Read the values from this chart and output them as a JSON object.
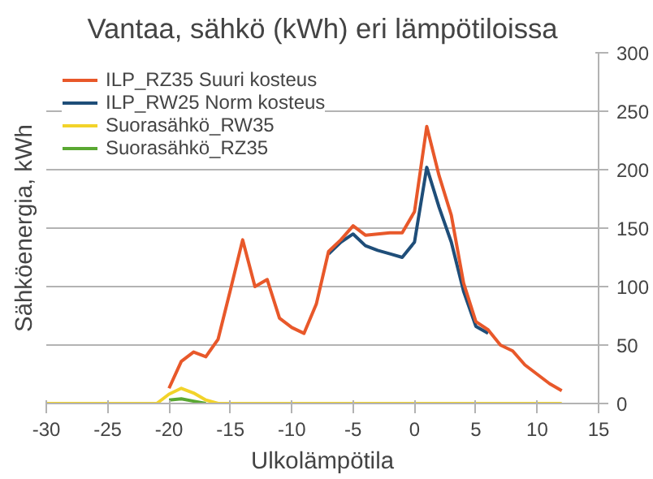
{
  "chart_data": {
    "type": "line",
    "title": "Vantaa, sähkö (kWh) eri lämpötiloissa",
    "xlabel": "Ulkolämpötila",
    "ylabel": "Sähköenergia, kWh",
    "x": [
      -30,
      -29,
      -28,
      -27,
      -26,
      -25,
      -24,
      -23,
      -22,
      -21,
      -20,
      -19,
      -18,
      -17,
      -16,
      -15,
      -14,
      -13,
      -12,
      -11,
      -10,
      -9,
      -8,
      -7,
      -6,
      -5,
      -4,
      -3,
      -2,
      -1,
      0,
      1,
      2,
      3,
      4,
      5,
      6,
      7,
      8,
      9,
      10,
      11,
      12
    ],
    "series": [
      {
        "name": "ILP_RZ35 Suuri kosteus",
        "color": "#e8582a",
        "values": [
          null,
          null,
          null,
          null,
          null,
          null,
          null,
          null,
          null,
          null,
          13,
          36,
          44,
          40,
          55,
          97,
          140,
          100,
          106,
          73,
          65,
          60,
          85,
          130,
          140,
          152,
          144,
          145,
          146,
          146,
          164,
          237,
          195,
          161,
          103,
          70,
          63,
          50,
          45,
          33,
          25,
          17,
          11
        ]
      },
      {
        "name": "ILP_RW25 Norm kosteus",
        "color": "#1f4e79",
        "values": [
          null,
          null,
          null,
          null,
          null,
          null,
          null,
          null,
          null,
          null,
          null,
          null,
          null,
          null,
          null,
          null,
          null,
          null,
          null,
          null,
          null,
          null,
          null,
          128,
          138,
          145,
          135,
          131,
          128,
          125,
          138,
          202,
          168,
          138,
          96,
          66,
          60,
          null,
          null,
          null,
          null,
          null,
          null
        ]
      },
      {
        "name": "Suorasähkö_RW35",
        "color": "#f2d32a",
        "values": [
          0,
          0,
          0,
          0,
          0,
          0,
          0,
          0,
          0,
          0,
          8,
          13,
          9,
          3,
          0,
          0,
          0,
          0,
          0,
          0,
          0,
          0,
          0,
          0,
          0,
          0,
          0,
          0,
          0,
          0,
          0,
          0,
          0,
          0,
          0,
          0,
          0,
          0,
          0,
          0,
          0,
          0,
          0
        ]
      },
      {
        "name": "Suorasähkö_RZ35",
        "color": "#5aa832",
        "values": [
          null,
          null,
          null,
          null,
          null,
          null,
          null,
          null,
          null,
          null,
          3,
          4,
          2,
          0,
          null,
          null,
          null,
          null,
          null,
          null,
          null,
          null,
          null,
          null,
          null,
          null,
          null,
          null,
          null,
          null,
          null,
          null,
          null,
          null,
          null,
          null,
          null,
          null,
          null,
          null,
          null,
          null,
          null
        ]
      }
    ],
    "xlim": [
      -30,
      15
    ],
    "xticks": [
      -30,
      -25,
      -20,
      -15,
      -10,
      -5,
      0,
      5,
      10,
      15
    ],
    "ylim": [
      0,
      300
    ],
    "yticks": [
      0,
      50,
      100,
      150,
      200,
      250,
      300
    ],
    "grid": "y",
    "legend": "top left",
    "line_style": "solid",
    "marker": "none"
  }
}
